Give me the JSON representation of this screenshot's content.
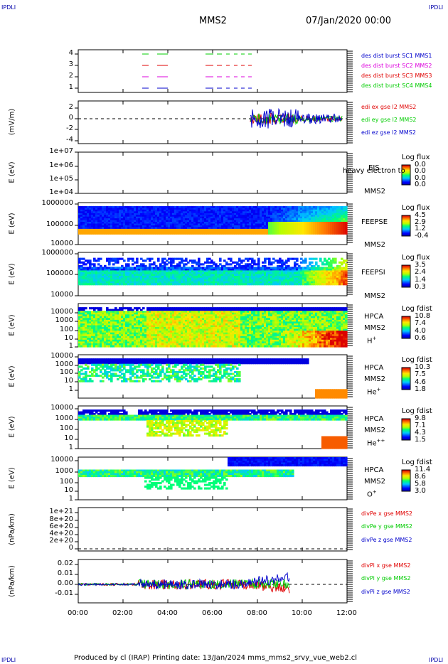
{
  "corners": {
    "tl": "IPDLI",
    "tr": "IPDLI",
    "bl": "IPDLI",
    "br": "IPDLI"
  },
  "header": {
    "spacecraft": "MMS2",
    "datetime": "07/Jan/2020 00:00"
  },
  "footer": {
    "text": "Produced by cl (IRAP)   Printing date: 13/Jan/2024   mms_mms2_srvy_vue_web2.cl"
  },
  "colors": {
    "red": "#e00000",
    "green": "#00cc00",
    "blue": "#0000cc",
    "magenta": "#dd00dd"
  },
  "chart_data": [
    {
      "type": "line",
      "panel": "des-dist-burst",
      "ylim": [
        1,
        4
      ],
      "yticks": [
        "4",
        "3",
        "2",
        "1"
      ],
      "legend": [
        {
          "text": "des dist burst SC1 MMS1",
          "color": "#0000cc"
        },
        {
          "text": "des dist burst SC2 MMS2",
          "color": "#dd00dd"
        },
        {
          "text": "des dist burst SC3 MMS3",
          "color": "#e00000"
        },
        {
          "text": "des dist burst SC4 MMS4",
          "color": "#00cc00"
        }
      ]
    },
    {
      "type": "line",
      "panel": "edi",
      "ylabel": "(mV/m)",
      "yticks": [
        "2",
        "0",
        "-2",
        "-4"
      ],
      "ylim": [
        -4,
        2
      ],
      "legend": [
        {
          "text": "edi ex gse l2 MMS2",
          "color": "#e00000"
        },
        {
          "text": "edi ey gse l2 MMS2",
          "color": "#00cc00"
        },
        {
          "text": "edi ez gse l2 MMS2",
          "color": "#0000cc"
        }
      ]
    },
    {
      "type": "heatmap",
      "panel": "eis",
      "ylabel": "E (eV)",
      "yticks": [
        "1e+07",
        "1e+06",
        "1e+05",
        "1e+04"
      ],
      "side": [
        "EIS",
        "MMS2"
      ],
      "overlay": "heavy electron to",
      "cb_title": "Log flux",
      "cb_ticks": [
        "0.0",
        "0.0",
        "0.0",
        "0.0"
      ]
    },
    {
      "type": "heatmap",
      "panel": "feepse",
      "ylabel": "E (eV)",
      "yticks": [
        "1000000",
        "100000",
        "10000"
      ],
      "side": [
        "FEEPSE",
        "MMS2"
      ],
      "cb_title": "Log flux",
      "cb_ticks": [
        "4.5",
        "2.9",
        "1.2",
        "-0.4"
      ]
    },
    {
      "type": "heatmap",
      "panel": "feepsi",
      "ylabel": "E (eV)",
      "yticks": [
        "1000000",
        "100000",
        "10000"
      ],
      "side": [
        "FEEPSI",
        "MMS2"
      ],
      "cb_title": "Log flux",
      "cb_ticks": [
        "3.5",
        "2.4",
        "1.4",
        "0.3"
      ]
    },
    {
      "type": "heatmap",
      "panel": "hpca-h",
      "ylabel": "E (eV)",
      "yticks": [
        "10000",
        "1000",
        "100",
        "10",
        "1"
      ],
      "side": [
        "HPCA",
        "MMS2",
        "H"
      ],
      "sup": "+",
      "cb_title": "Log fdist",
      "cb_ticks": [
        "10.8",
        "7.4",
        "4.0",
        "0.6"
      ]
    },
    {
      "type": "heatmap",
      "panel": "hpca-he",
      "ylabel": "E (eV)",
      "yticks": [
        "10000",
        "1000",
        "100",
        "10",
        "1"
      ],
      "side": [
        "HPCA",
        "MMS2",
        "He"
      ],
      "sup": "+",
      "cb_title": "Log fdist",
      "cb_ticks": [
        "10.3",
        "7.5",
        "4.6",
        "1.8"
      ]
    },
    {
      "type": "heatmap",
      "panel": "hpca-hepp",
      "ylabel": "E (eV)",
      "yticks": [
        "10000",
        "1000",
        "100",
        "10",
        "1"
      ],
      "side": [
        "HPCA",
        "MMS2",
        "He"
      ],
      "sup": "++",
      "cb_title": "Log fdist",
      "cb_ticks": [
        "9.8",
        "7.1",
        "4.3",
        "1.5"
      ]
    },
    {
      "type": "heatmap",
      "panel": "hpca-o",
      "ylabel": "E (eV)",
      "yticks": [
        "10000",
        "1000",
        "100",
        "10",
        "1"
      ],
      "side": [
        "HPCA",
        "MMS2",
        "O"
      ],
      "sup": "+",
      "cb_title": "Log fdist",
      "cb_ticks": [
        "11.4",
        "8.6",
        "5.8",
        "3.0"
      ]
    },
    {
      "type": "line",
      "panel": "divpe",
      "ylabel": "(nPa/km)",
      "yticks": [
        "1e+21",
        "8e+20",
        "6e+20",
        "4e+20",
        "2e+20",
        "0"
      ],
      "legend": [
        {
          "text": "divPe x gse MMS2",
          "color": "#e00000"
        },
        {
          "text": "divPe y gse MMS2",
          "color": "#00cc00"
        },
        {
          "text": "divPe z gse MMS2",
          "color": "#0000cc"
        }
      ]
    },
    {
      "type": "line",
      "panel": "divpi",
      "ylabel": "(nPa/km)",
      "yticks": [
        "0.02",
        "0.01",
        "0.00",
        "-0.01"
      ],
      "ylim": [
        -0.015,
        0.025
      ],
      "legend": [
        {
          "text": "divPi x gse MMS2",
          "color": "#e00000"
        },
        {
          "text": "divPi y gse MMS2",
          "color": "#00cc00"
        },
        {
          "text": "divPi z gse MMS2",
          "color": "#0000cc"
        }
      ]
    }
  ],
  "xaxis": {
    "ticks": [
      "00:00",
      "02:00",
      "04:00",
      "06:00",
      "08:00",
      "10:00",
      "12:00"
    ]
  }
}
